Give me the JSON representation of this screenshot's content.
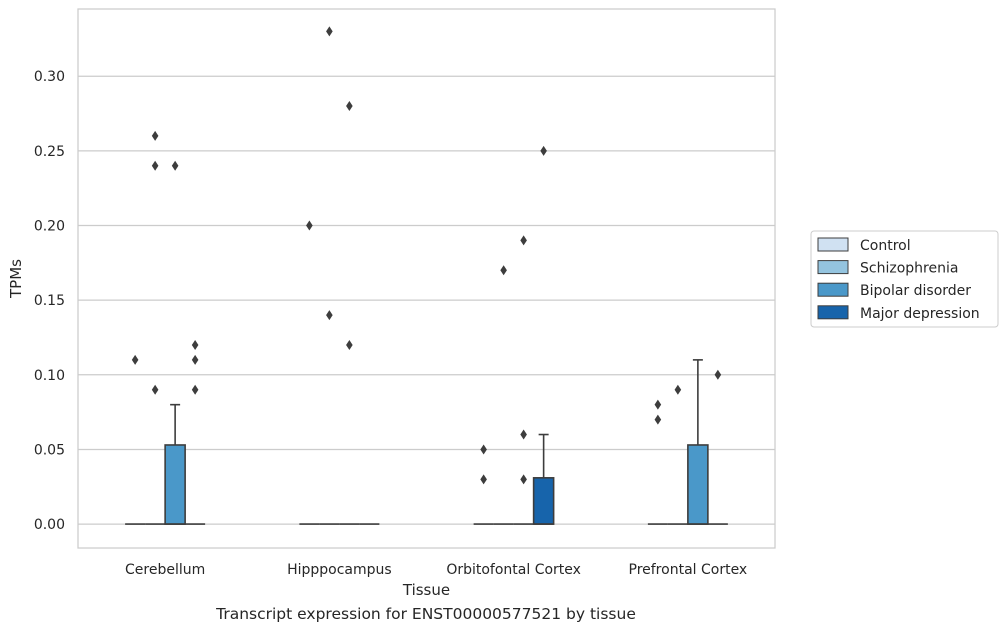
{
  "caption": "Transcript expression for ENST00000577521 by tissue",
  "chart_data": {
    "type": "box",
    "xlabel": "Tissue",
    "ylabel": "TPMs",
    "ylim": [
      -0.016,
      0.345
    ],
    "yticks": [
      0.0,
      0.05,
      0.1,
      0.15,
      0.2,
      0.25,
      0.3
    ],
    "ytick_labels": [
      "0.00",
      "0.05",
      "0.10",
      "0.15",
      "0.20",
      "0.25",
      "0.30"
    ],
    "grid": true,
    "legend_position": "right",
    "categories": [
      "Cerebellum",
      "Hipppocampus",
      "Orbitofontal Cortex",
      "Prefrontal Cortex"
    ],
    "series": [
      {
        "name": "Control",
        "color": "#d0e1f2"
      },
      {
        "name": "Schizophrenia",
        "color": "#94c4df"
      },
      {
        "name": "Bipolar disorder",
        "color": "#4a98c9"
      },
      {
        "name": "Major depression",
        "color": "#1764ab"
      }
    ],
    "boxes": [
      {
        "category": "Cerebellum",
        "series": "Control",
        "q1": 0,
        "median": 0,
        "q3": 0,
        "whisker_low": 0,
        "whisker_high": 0,
        "outliers": [
          0.11
        ]
      },
      {
        "category": "Cerebellum",
        "series": "Schizophrenia",
        "q1": 0,
        "median": 0,
        "q3": 0,
        "whisker_low": 0,
        "whisker_high": 0,
        "outliers": [
          0.26,
          0.24,
          0.09
        ]
      },
      {
        "category": "Cerebellum",
        "series": "Bipolar disorder",
        "q1": 0,
        "median": 0,
        "q3": 0.053,
        "whisker_low": 0,
        "whisker_high": 0.08,
        "outliers": [
          0.24
        ]
      },
      {
        "category": "Cerebellum",
        "series": "Major depression",
        "q1": 0,
        "median": 0,
        "q3": 0,
        "whisker_low": 0,
        "whisker_high": 0,
        "outliers": [
          0.12,
          0.11,
          0.09
        ]
      },
      {
        "category": "Hipppocampus",
        "series": "Control",
        "q1": 0,
        "median": 0,
        "q3": 0,
        "whisker_low": 0,
        "whisker_high": 0,
        "outliers": [
          0.2
        ]
      },
      {
        "category": "Hipppocampus",
        "series": "Schizophrenia",
        "q1": 0,
        "median": 0,
        "q3": 0,
        "whisker_low": 0,
        "whisker_high": 0,
        "outliers": [
          0.33,
          0.14
        ]
      },
      {
        "category": "Hipppocampus",
        "series": "Bipolar disorder",
        "q1": 0,
        "median": 0,
        "q3": 0,
        "whisker_low": 0,
        "whisker_high": 0,
        "outliers": [
          0.28,
          0.12
        ]
      },
      {
        "category": "Hipppocampus",
        "series": "Major depression",
        "q1": 0,
        "median": 0,
        "q3": 0,
        "whisker_low": 0,
        "whisker_high": 0,
        "outliers": []
      },
      {
        "category": "Orbitofontal Cortex",
        "series": "Control",
        "q1": 0,
        "median": 0,
        "q3": 0,
        "whisker_low": 0,
        "whisker_high": 0,
        "outliers": [
          0.05,
          0.03
        ]
      },
      {
        "category": "Orbitofontal Cortex",
        "series": "Schizophrenia",
        "q1": 0,
        "median": 0,
        "q3": 0,
        "whisker_low": 0,
        "whisker_high": 0,
        "outliers": [
          0.17
        ]
      },
      {
        "category": "Orbitofontal Cortex",
        "series": "Bipolar disorder",
        "q1": 0,
        "median": 0,
        "q3": 0,
        "whisker_low": 0,
        "whisker_high": 0,
        "outliers": [
          0.19,
          0.06,
          0.03
        ]
      },
      {
        "category": "Orbitofontal Cortex",
        "series": "Major depression",
        "q1": 0,
        "median": 0,
        "q3": 0.031,
        "whisker_low": 0,
        "whisker_high": 0.06,
        "outliers": [
          0.25
        ]
      },
      {
        "category": "Prefrontal Cortex",
        "series": "Control",
        "q1": 0,
        "median": 0,
        "q3": 0,
        "whisker_low": 0,
        "whisker_high": 0,
        "outliers": [
          0.08,
          0.07
        ]
      },
      {
        "category": "Prefrontal Cortex",
        "series": "Schizophrenia",
        "q1": 0,
        "median": 0,
        "q3": 0,
        "whisker_low": 0,
        "whisker_high": 0,
        "outliers": [
          0.09
        ]
      },
      {
        "category": "Prefrontal Cortex",
        "series": "Bipolar disorder",
        "q1": 0,
        "median": 0,
        "q3": 0.053,
        "whisker_low": 0,
        "whisker_high": 0.11,
        "outliers": []
      },
      {
        "category": "Prefrontal Cortex",
        "series": "Major depression",
        "q1": 0,
        "median": 0,
        "q3": 0,
        "whisker_low": 0,
        "whisker_high": 0,
        "outliers": [
          0.1
        ]
      }
    ]
  }
}
